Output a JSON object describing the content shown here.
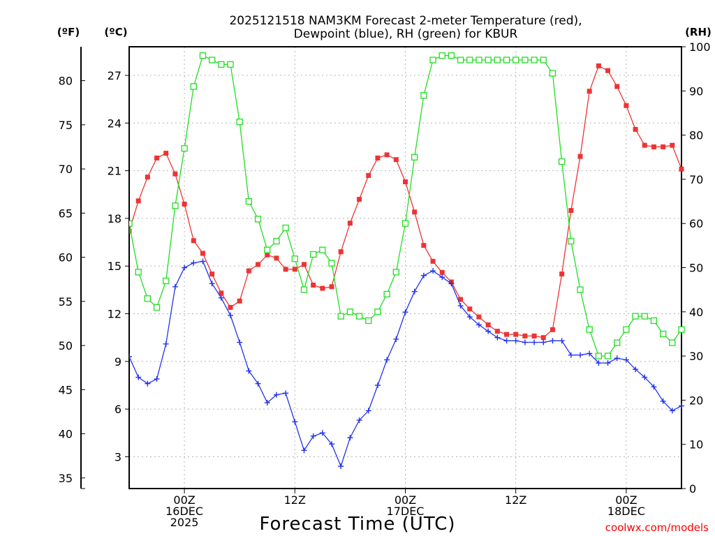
{
  "chart_data": {
    "type": "line",
    "title": [
      "2025121518 NAM3KM Forecast 2-meter Temperature (red),",
      "Dewpoint (blue), RH (green) for KBUR"
    ],
    "xlabel": "Forecast Time (UTC)",
    "credit": "coolwx.com/models",
    "units": {
      "fahrenheit": "(ºF)",
      "celsius": "(ºC)",
      "rh": "(RH)"
    },
    "x_hours_range": [
      -6,
      54
    ],
    "x_ticks": [
      {
        "hour": 0,
        "lines": [
          "00Z",
          "16DEC",
          "2025"
        ]
      },
      {
        "hour": 12,
        "lines": [
          "12Z"
        ]
      },
      {
        "hour": 24,
        "lines": [
          "00Z",
          "17DEC"
        ]
      },
      {
        "hour": 36,
        "lines": [
          "12Z"
        ]
      },
      {
        "hour": 48,
        "lines": [
          "00Z",
          "18DEC"
        ]
      }
    ],
    "y_celsius": {
      "range": [
        1.0,
        28.8
      ],
      "ticks": [
        3,
        6,
        9,
        12,
        15,
        18,
        21,
        24,
        27
      ]
    },
    "y_fahrenheit": {
      "ticks": [
        35,
        40,
        45,
        50,
        55,
        60,
        65,
        70,
        75,
        80
      ]
    },
    "y_rh": {
      "range": [
        0,
        100
      ],
      "ticks": [
        0,
        10,
        20,
        30,
        40,
        50,
        60,
        70,
        80,
        90,
        100
      ]
    },
    "hours": [
      -6,
      -5,
      -4,
      -3,
      -2,
      -1,
      0,
      1,
      2,
      3,
      4,
      5,
      6,
      7,
      8,
      9,
      10,
      11,
      12,
      13,
      14,
      15,
      16,
      17,
      18,
      19,
      20,
      21,
      22,
      23,
      24,
      25,
      26,
      27,
      28,
      29,
      30,
      31,
      32,
      33,
      34,
      35,
      36,
      37,
      38,
      39,
      40,
      41,
      42,
      43,
      44,
      45,
      46,
      47,
      48,
      49,
      50,
      51,
      52,
      53,
      54
    ],
    "series": [
      {
        "name": "2-meter Temperature",
        "unit": "C",
        "color": "#ee3333",
        "marker": "filled-square",
        "values": [
          17.2,
          19.1,
          20.6,
          21.8,
          22.1,
          20.8,
          18.9,
          16.6,
          15.8,
          14.5,
          13.3,
          12.4,
          12.8,
          14.7,
          15.1,
          15.7,
          15.5,
          14.8,
          14.8,
          15.1,
          13.8,
          13.6,
          13.7,
          15.9,
          17.7,
          19.2,
          20.7,
          21.8,
          22.0,
          21.7,
          20.3,
          18.4,
          16.3,
          15.3,
          14.6,
          14.0,
          12.9,
          12.3,
          11.8,
          11.3,
          10.9,
          10.7,
          10.7,
          10.6,
          10.6,
          10.5,
          11.0,
          14.5,
          18.5,
          21.9,
          26.0,
          27.6,
          27.3,
          26.3,
          25.1,
          23.6,
          22.6,
          22.5,
          22.5,
          22.6,
          21.1
        ]
      },
      {
        "name": "Dewpoint",
        "unit": "C",
        "color": "#2233ee",
        "marker": "plus",
        "values": [
          9.3,
          8.0,
          7.6,
          7.9,
          10.1,
          13.7,
          14.9,
          15.2,
          15.3,
          13.9,
          13.0,
          11.9,
          10.2,
          8.4,
          7.6,
          6.4,
          6.9,
          7.0,
          5.2,
          3.4,
          4.3,
          4.5,
          3.8,
          2.4,
          4.2,
          5.3,
          5.9,
          7.5,
          9.1,
          10.4,
          12.1,
          13.4,
          14.4,
          14.7,
          14.3,
          13.9,
          12.5,
          11.8,
          11.3,
          10.9,
          10.5,
          10.3,
          10.3,
          10.2,
          10.2,
          10.2,
          10.3,
          10.3,
          9.4,
          9.4,
          9.5,
          8.9,
          8.9,
          9.2,
          9.1,
          8.5,
          8.0,
          7.4,
          6.5,
          5.9,
          6.2
        ]
      },
      {
        "name": "RH",
        "unit": "%",
        "color": "#22dd22",
        "marker": "open-square",
        "values": [
          60,
          49,
          43,
          41,
          47,
          64,
          77,
          91,
          98,
          97,
          96,
          96,
          83,
          65,
          61,
          54,
          56,
          59,
          52,
          45,
          53,
          54,
          51,
          39,
          40,
          39,
          38,
          40,
          44,
          49,
          60,
          75,
          89,
          97,
          98,
          98,
          97,
          97,
          97,
          97,
          97,
          97,
          97,
          97,
          97,
          97,
          94,
          74,
          56,
          45,
          36,
          30,
          30,
          33,
          36,
          39,
          39,
          38,
          35,
          33,
          36
        ]
      }
    ]
  }
}
